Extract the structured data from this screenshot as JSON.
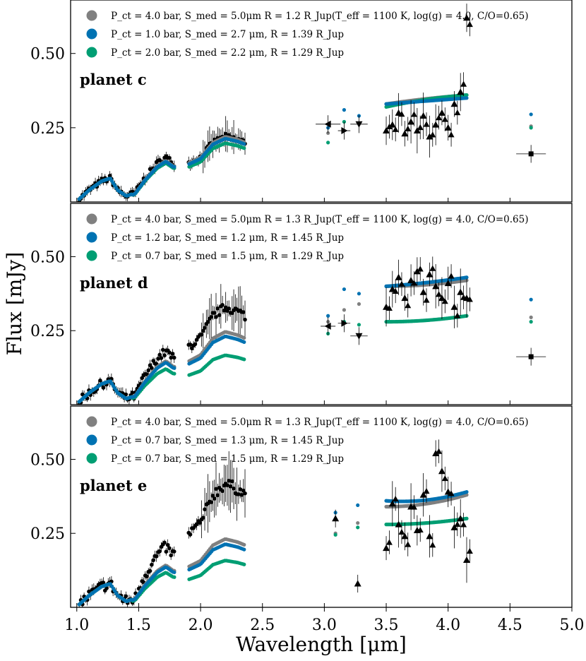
{
  "colors": {
    "gray": "#808080",
    "blue": "#0072b2",
    "green": "#009e73",
    "data": "#000000"
  },
  "chart_data": {
    "type": "scatter",
    "xlabel": "Wavelength [μm]",
    "ylabel": "Flux [mJy]",
    "xlim": [
      0.95,
      5.0
    ],
    "ylim": [
      0.0,
      0.68
    ],
    "xticks": [
      "1.0",
      "1.5",
      "2.0",
      "2.5",
      "3.0",
      "3.5",
      "4.0",
      "4.5",
      "5.0"
    ],
    "xtick_values": [
      1.0,
      1.5,
      2.0,
      2.5,
      3.0,
      3.5,
      4.0,
      4.5,
      5.0
    ],
    "yticks": [
      "0.25",
      "0.50"
    ],
    "ytick_values": [
      0.25,
      0.5
    ],
    "panels": [
      {
        "label": "planet c",
        "legend": [
          {
            "color": "gray",
            "text": "P_ct = 4.0 bar, S_med = 5.0μm R = 1.2 R_Jup(T_eff = 1100 K, log(g) = 4.0, C/O=0.65)"
          },
          {
            "color": "blue",
            "text": "P_ct = 1.0 bar, S_med = 2.7 μm, R = 1.39 R_Jup"
          },
          {
            "color": "green",
            "text": "P_ct = 2.0 bar, S_med = 2.2 μm, R = 1.29 R_Jup"
          }
        ],
        "data_scale": 1.0,
        "model_scale": {
          "gray": 1.0,
          "blue": 0.97,
          "green": 0.9
        },
        "lm_data": [
          [
            3.5,
            0.24
          ],
          [
            3.55,
            0.26
          ],
          [
            3.6,
            0.3
          ],
          [
            3.65,
            0.23
          ],
          [
            3.7,
            0.27
          ],
          [
            3.75,
            0.24
          ],
          [
            3.8,
            0.29
          ],
          [
            3.85,
            0.22
          ],
          [
            3.9,
            0.26
          ],
          [
            3.95,
            0.3
          ],
          [
            4.0,
            0.25
          ],
          [
            4.05,
            0.33
          ],
          [
            4.1,
            0.37
          ],
          [
            4.15,
            0.62
          ]
        ],
        "lm_model": {
          "gray": [
            0.33,
            0.35,
            0.36
          ],
          "blue": [
            0.33,
            0.34,
            0.35
          ],
          "green": [
            0.32,
            0.35,
            0.36
          ]
        },
        "photometry": [
          {
            "x": 3.03,
            "y": 0.262,
            "xerr": 0.1,
            "sym": "tri-left"
          },
          {
            "x": 3.16,
            "y": 0.24,
            "xerr": 0.05,
            "sym": "tri-right"
          },
          {
            "x": 3.28,
            "y": 0.262,
            "xerr": 0.07,
            "sym": "tri-down"
          },
          {
            "x": 4.67,
            "y": 0.162,
            "xerr": 0.12,
            "sym": "square"
          }
        ],
        "phot_models": [
          {
            "x": 3.03,
            "gray": 0.232,
            "blue": 0.25,
            "green": 0.2
          },
          {
            "x": 3.16,
            "gray": 0.27,
            "blue": 0.31,
            "green": 0.27
          },
          {
            "x": 3.28,
            "gray": 0.265,
            "blue": 0.29,
            "green": 0.265
          },
          {
            "x": 4.67,
            "gray": 0.255,
            "blue": 0.295,
            "green": 0.25
          }
        ]
      },
      {
        "label": "planet d",
        "legend": [
          {
            "color": "gray",
            "text": "P_ct = 4.0 bar, S_med = 5.0μm R = 1.3 R_Jup(T_eff = 1100 K, log(g) = 4.0, C/O=0.65)"
          },
          {
            "color": "blue",
            "text": "P_ct = 1.2 bar, S_med = 1.2 μm, R = 1.45 R_Jup"
          },
          {
            "color": "green",
            "text": "P_ct = 0.7 bar, S_med = 1.5 μm, R = 1.29 R_Jup"
          }
        ],
        "data_scale": 1.5,
        "model_scale": {
          "gray": 1.12,
          "blue": 1.05,
          "green": 0.76
        },
        "lm_data": [
          [
            3.5,
            0.33
          ],
          [
            3.55,
            0.39
          ],
          [
            3.6,
            0.43
          ],
          [
            3.65,
            0.36
          ],
          [
            3.7,
            0.42
          ],
          [
            3.75,
            0.45
          ],
          [
            3.8,
            0.38
          ],
          [
            3.85,
            0.44
          ],
          [
            3.9,
            0.4
          ],
          [
            3.95,
            0.36
          ],
          [
            4.0,
            0.41
          ],
          [
            4.05,
            0.33
          ],
          [
            4.1,
            0.38
          ],
          [
            4.15,
            0.36
          ]
        ],
        "lm_model": {
          "gray": [
            0.4,
            0.4,
            0.42
          ],
          "blue": [
            0.4,
            0.41,
            0.43
          ],
          "green": [
            0.28,
            0.28,
            0.3
          ]
        },
        "photometry": [
          {
            "x": 3.03,
            "y": 0.265,
            "xerr": 0.06,
            "sym": "tri-left"
          },
          {
            "x": 3.16,
            "y": 0.275,
            "xerr": 0.05,
            "sym": "tri-right"
          },
          {
            "x": 3.28,
            "y": 0.232,
            "xerr": 0.07,
            "sym": "tri-down"
          },
          {
            "x": 4.67,
            "y": 0.162,
            "xerr": 0.12,
            "sym": "square"
          }
        ],
        "phot_models": [
          {
            "x": 3.03,
            "gray": 0.28,
            "blue": 0.3,
            "green": 0.24
          },
          {
            "x": 3.16,
            "gray": 0.32,
            "blue": 0.39,
            "green": 0.28
          },
          {
            "x": 3.28,
            "gray": 0.34,
            "blue": 0.375,
            "green": 0.27
          },
          {
            "x": 4.67,
            "gray": 0.295,
            "blue": 0.355,
            "green": 0.28
          }
        ]
      },
      {
        "label": "planet e",
        "legend": [
          {
            "color": "gray",
            "text": "P_ct = 4.0 bar, S_med = 5.0μm R = 1.3 R_Jup(T_eff = 1100 K, log(g) = 4.0, C/O=0.65)"
          },
          {
            "color": "blue",
            "text": "P_ct = 0.7 bar, S_med = 1.3 μm, R = 1.45 R_Jup"
          },
          {
            "color": "green",
            "text": "P_ct = 0.7 bar, S_med = 1.5 μm, R = 1.29 R_Jup"
          }
        ],
        "data_scale": 1.9,
        "model_scale": {
          "gray": 1.05,
          "blue": 0.97,
          "green": 0.72
        },
        "lm_data": [
          [
            3.5,
            0.2
          ],
          [
            3.55,
            0.35
          ],
          [
            3.6,
            0.28
          ],
          [
            3.65,
            0.24
          ],
          [
            3.7,
            0.34
          ],
          [
            3.75,
            0.26
          ],
          [
            3.8,
            0.38
          ],
          [
            3.85,
            0.24
          ],
          [
            3.9,
            0.52
          ],
          [
            3.95,
            0.46
          ],
          [
            4.0,
            0.39
          ],
          [
            4.05,
            0.27
          ],
          [
            4.1,
            0.3
          ],
          [
            4.15,
            0.16
          ]
        ],
        "lm_model": {
          "gray": [
            0.34,
            0.34,
            0.38
          ],
          "blue": [
            0.36,
            0.35,
            0.39
          ],
          "green": [
            0.28,
            0.28,
            0.3
          ]
        },
        "photometry": [
          {
            "x": 3.09,
            "y": 0.3,
            "xerr": 0.0,
            "sym": "tri-up"
          },
          {
            "x": 3.27,
            "y": 0.08,
            "xerr": 0.0,
            "sym": "tri-up"
          }
        ],
        "phot_models": [
          {
            "x": 3.09,
            "gray": 0.25,
            "blue": 0.32,
            "green": 0.245
          },
          {
            "x": 3.27,
            "gray": 0.285,
            "blue": 0.345,
            "green": 0.27
          }
        ]
      }
    ]
  }
}
